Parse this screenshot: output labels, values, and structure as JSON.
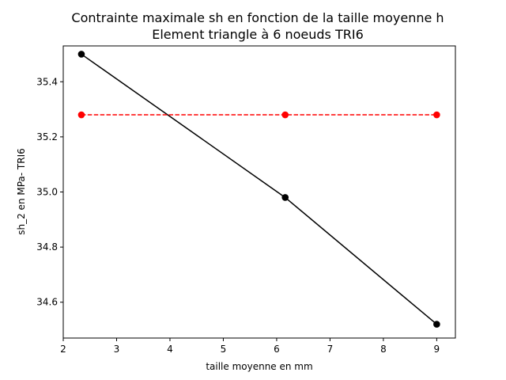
{
  "chart_data": {
    "type": "line",
    "title": "Contrainte maximale sh en fonction de la taille moyenne h",
    "subtitle": "Element triangle à 6 noeuds TRI6",
    "xlabel": "taille moyenne en mm",
    "ylabel": "sh_2 en MPa- TRI6",
    "xlim": [
      2.0,
      9.35
    ],
    "ylim": [
      34.47,
      35.53
    ],
    "x_ticks": [
      2,
      3,
      4,
      5,
      6,
      7,
      8,
      9
    ],
    "y_ticks": [
      34.6,
      34.8,
      35.0,
      35.2,
      35.4
    ],
    "grid": false,
    "series": [
      {
        "color": "#000000",
        "line_style": "solid",
        "marker": "circle",
        "points": [
          {
            "x": 2.34,
            "y": 35.5
          },
          {
            "x": 6.16,
            "y": 34.98
          },
          {
            "x": 9.0,
            "y": 34.52
          }
        ]
      },
      {
        "color": "#ff0000",
        "line_style": "dashed",
        "marker": "circle",
        "points": [
          {
            "x": 2.34,
            "y": 35.28
          },
          {
            "x": 6.16,
            "y": 35.28
          },
          {
            "x": 9.0,
            "y": 35.28
          }
        ]
      }
    ]
  }
}
